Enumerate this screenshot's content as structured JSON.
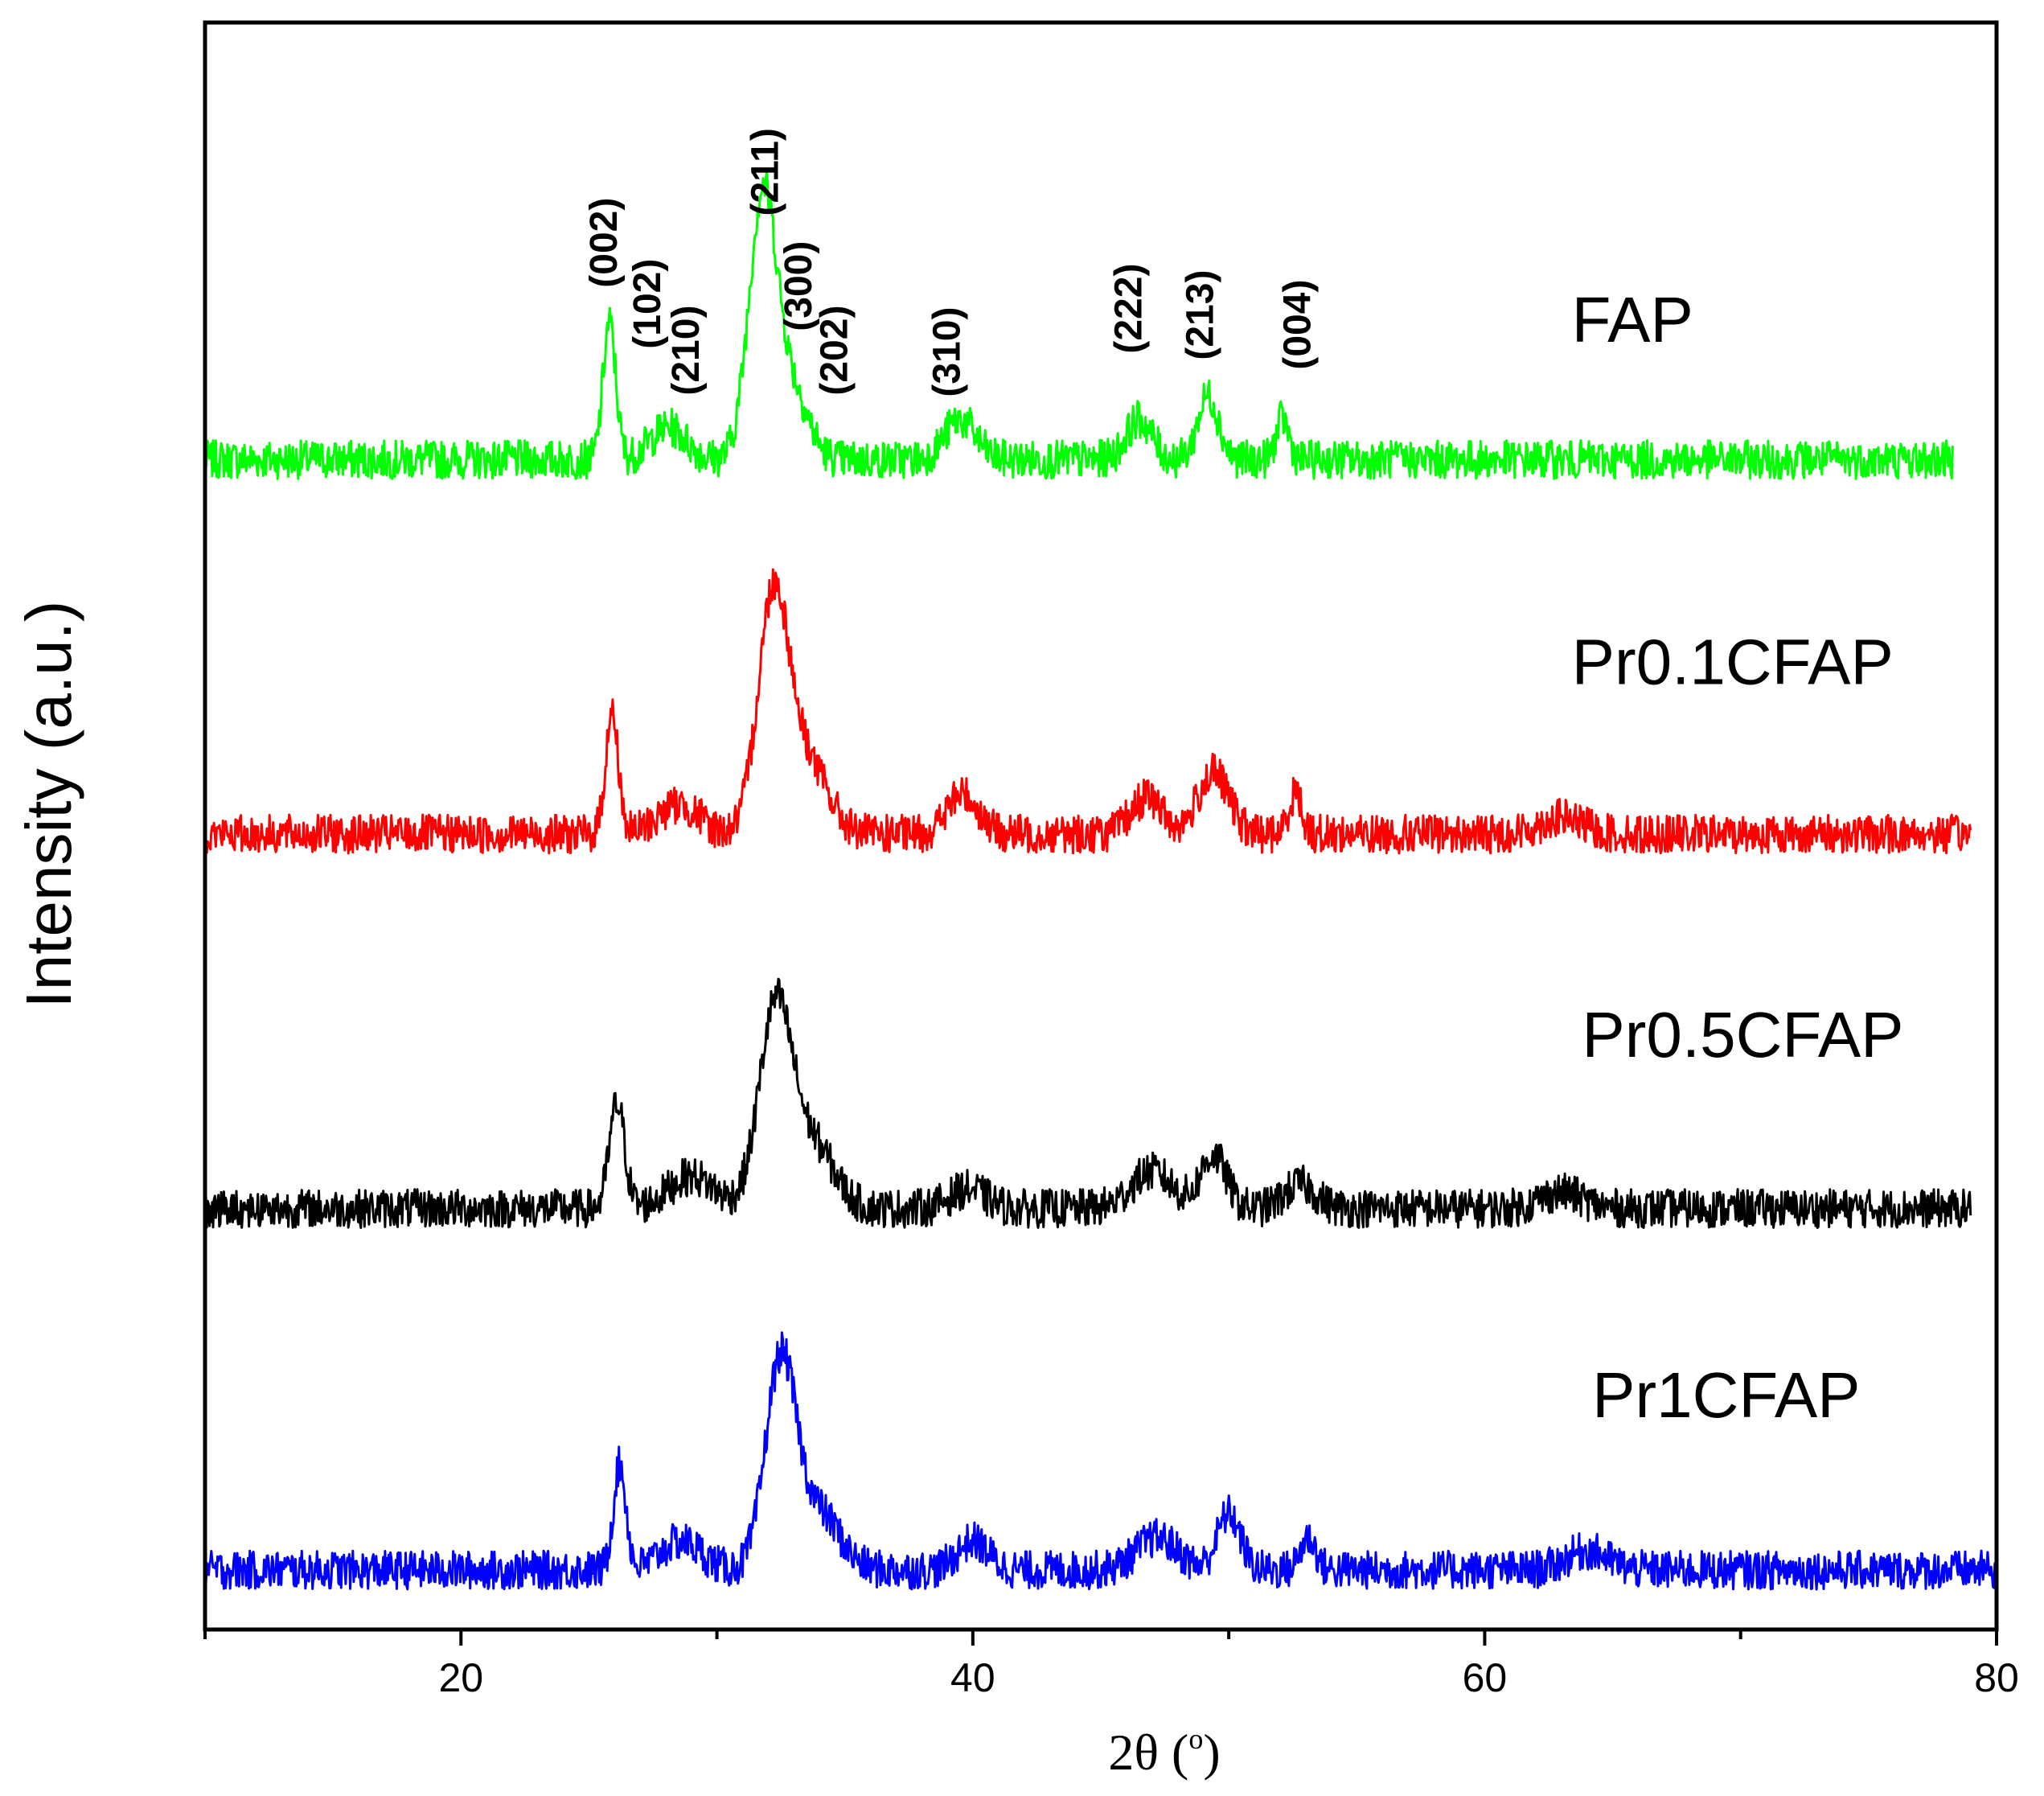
{
  "chart_data": {
    "type": "line",
    "title": "",
    "xlabel": "2θ (°)",
    "xlabel_parts": {
      "main": "2θ (",
      "sup": "o",
      "close": ")"
    },
    "ylabel": "Intensity (a.u.)",
    "xlim": [
      10,
      80
    ],
    "xticks": [
      20,
      40,
      60,
      80
    ],
    "xtick_labels": [
      "20",
      "40",
      "60",
      "80"
    ],
    "ylim": [
      0,
      100
    ],
    "yticks_labeled": false,
    "legend": "labels placed to the right of each offset trace",
    "series": [
      {
        "name": "FAP",
        "color": "#00ff00",
        "baseline": 72.8,
        "x_range": [
          10,
          78.3
        ],
        "peaks": [
          {
            "x": 25.8,
            "height": 8.5,
            "width": 0.25
          },
          {
            "x": 28.1,
            "height": 2.0,
            "width": 0.7
          },
          {
            "x": 31.8,
            "height": 16.5,
            "width": 0.55
          },
          {
            "x": 33.0,
            "height": 4.0,
            "width": 0.6
          },
          {
            "x": 39.5,
            "height": 2.5,
            "width": 0.6
          },
          {
            "x": 46.5,
            "height": 2.5,
            "width": 0.5
          },
          {
            "x": 49.2,
            "height": 4.0,
            "width": 0.4
          },
          {
            "x": 52.1,
            "height": 2.5,
            "width": 0.25
          }
        ]
      },
      {
        "name": "Pr0.1CFAP",
        "color": "#ff0000",
        "baseline": 49.5,
        "x_range": [
          10,
          79
        ],
        "peaks": [
          {
            "x": 25.9,
            "height": 7.5,
            "width": 0.25
          },
          {
            "x": 28.5,
            "height": 1.8,
            "width": 0.8
          },
          {
            "x": 32.2,
            "height": 14.5,
            "width": 0.6
          },
          {
            "x": 33.5,
            "height": 4.5,
            "width": 0.8
          },
          {
            "x": 39.6,
            "height": 2.5,
            "width": 0.6
          },
          {
            "x": 46.8,
            "height": 2.3,
            "width": 0.6
          },
          {
            "x": 49.4,
            "height": 3.8,
            "width": 0.6
          },
          {
            "x": 52.6,
            "height": 2.6,
            "width": 0.25
          },
          {
            "x": 63.0,
            "height": 1.0,
            "width": 0.8
          }
        ]
      },
      {
        "name": "Pr0.5CFAP",
        "color": "#000000",
        "baseline": 26.2,
        "x_range": [
          10,
          79
        ],
        "peaks": [
          {
            "x": 26.1,
            "height": 6.5,
            "width": 0.3
          },
          {
            "x": 29.0,
            "height": 2.0,
            "width": 0.9
          },
          {
            "x": 32.3,
            "height": 12.5,
            "width": 0.65
          },
          {
            "x": 33.8,
            "height": 3.8,
            "width": 0.8
          },
          {
            "x": 39.8,
            "height": 1.2,
            "width": 0.7
          },
          {
            "x": 47.0,
            "height": 2.3,
            "width": 0.8
          },
          {
            "x": 49.4,
            "height": 3.3,
            "width": 0.5
          },
          {
            "x": 52.8,
            "height": 1.5,
            "width": 0.6
          },
          {
            "x": 63.0,
            "height": 1.0,
            "width": 0.8
          }
        ]
      },
      {
        "name": "Pr1CFAP",
        "color": "#0000ff",
        "baseline": 3.7,
        "x_range": [
          10,
          80
        ],
        "peaks": [
          {
            "x": 26.2,
            "height": 6.5,
            "width": 0.25
          },
          {
            "x": 28.6,
            "height": 1.8,
            "width": 0.8
          },
          {
            "x": 32.5,
            "height": 13.0,
            "width": 0.6
          },
          {
            "x": 34.0,
            "height": 3.5,
            "width": 0.8
          },
          {
            "x": 40.0,
            "height": 1.8,
            "width": 0.6
          },
          {
            "x": 47.2,
            "height": 2.0,
            "width": 0.8
          },
          {
            "x": 50.0,
            "height": 3.5,
            "width": 0.45
          },
          {
            "x": 53.1,
            "height": 2.0,
            "width": 0.3
          },
          {
            "x": 64.0,
            "height": 1.2,
            "width": 0.8
          }
        ]
      }
    ],
    "annotations": [
      {
        "text": "(002)",
        "x": 25.6,
        "y": 86.3
      },
      {
        "text": "(102)",
        "x": 27.3,
        "y": 82.5
      },
      {
        "text": "(210)",
        "x": 28.8,
        "y": 79.6
      },
      {
        "text": "(211)",
        "x": 31.9,
        "y": 90.7
      },
      {
        "text": "(300)",
        "x": 33.2,
        "y": 83.6
      },
      {
        "text": "(202)",
        "x": 34.6,
        "y": 79.6
      },
      {
        "text": "(310)",
        "x": 39.0,
        "y": 79.5
      },
      {
        "text": "(222)",
        "x": 46.1,
        "y": 82.2
      },
      {
        "text": "(213)",
        "x": 48.9,
        "y": 81.8
      },
      {
        "text": "(004)",
        "x": 52.7,
        "y": 81.2
      }
    ],
    "series_labels": [
      {
        "text": "FAP",
        "x": 63.4,
        "y": 81.5
      },
      {
        "text": "Pr0.1CFAP",
        "x": 63.4,
        "y": 60.2
      },
      {
        "text": "Pr0.5CFAP",
        "x": 63.8,
        "y": 37.0
      },
      {
        "text": "Pr1CFAP",
        "x": 64.2,
        "y": 14.6
      }
    ]
  }
}
